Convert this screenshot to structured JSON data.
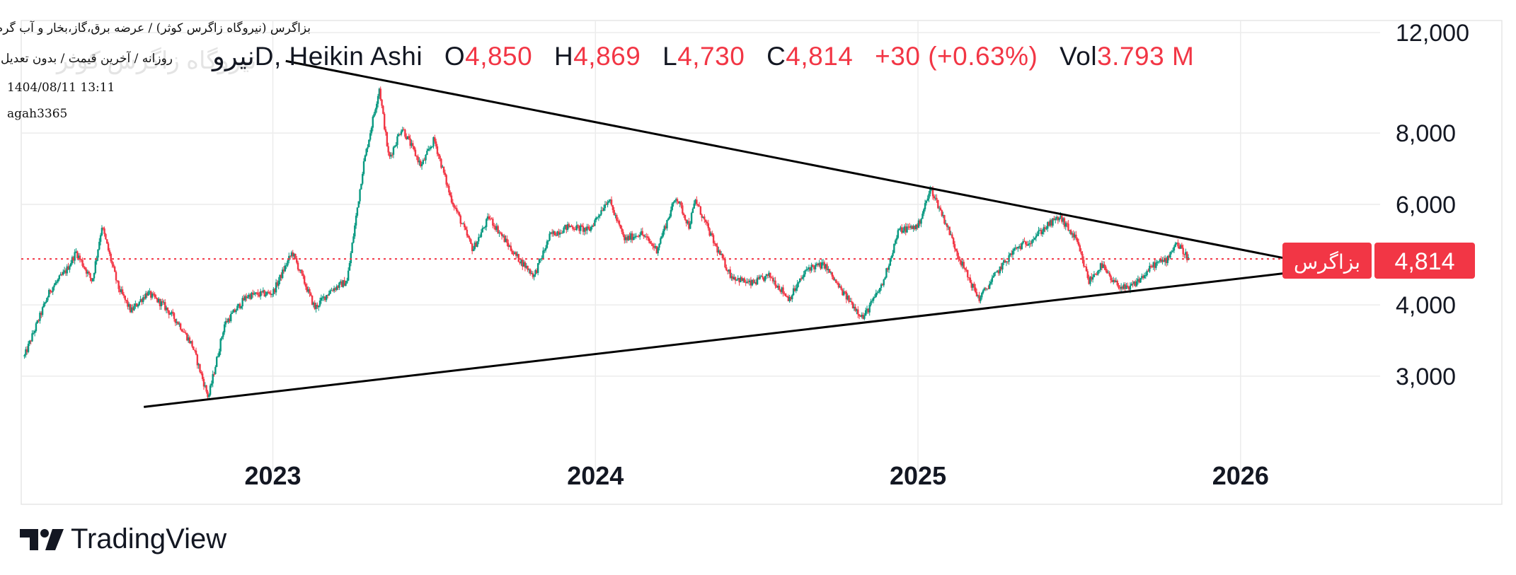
{
  "header": {
    "line1": "بزاگرس (نیروگاه زاگرس کوثر) / عرضه برق،گاز،بخار و آب گرم",
    "line2": "روزانه / آخرین قیمت / بدون تعدیل",
    "date": "1404/08/11 13:11",
    "user": "agah3365",
    "watermark": "نیروگاه زاگرس کوثر"
  },
  "legend": {
    "symbol": "نیروD, Heikin Ashi",
    "open_label": "O",
    "open": "4,850",
    "high_label": "H",
    "high": "4,869",
    "low_label": "L",
    "low": "4,730",
    "close_label": "C",
    "close": "4,814",
    "change": "+30 (+0.63%)",
    "vol_label": "Vol",
    "vol": "3.793 M"
  },
  "price_tag": {
    "name": "بزاگرس",
    "value": "4,814"
  },
  "branding": {
    "name": "TradingView"
  },
  "colors": {
    "up": "#089981",
    "down": "#f23645",
    "line": "#000000",
    "grid": "#ececec"
  },
  "chart_data": {
    "type": "candlestick",
    "chart_style": "Heikin Ashi",
    "y_scale": "log",
    "ylim": [
      2300,
      12600
    ],
    "y_ticks": [
      {
        "value": 12000,
        "label": "12,000"
      },
      {
        "value": 8000,
        "label": "8,000"
      },
      {
        "value": 6000,
        "label": "6,000"
      },
      {
        "value": 4000,
        "label": "4,000"
      },
      {
        "value": 3000,
        "label": "3,000"
      }
    ],
    "x_range": [
      2022.22,
      2026.81
    ],
    "x_ticks": [
      {
        "value": 2023.0,
        "label": "2023"
      },
      {
        "value": 2024.0,
        "label": "2024"
      },
      {
        "value": 2025.0,
        "label": "2025"
      },
      {
        "value": 2026.0,
        "label": "2026"
      }
    ],
    "last_price": 4814,
    "price_path": [
      [
        2022.23,
        3250
      ],
      [
        2022.26,
        3600
      ],
      [
        2022.31,
        4250
      ],
      [
        2022.36,
        4600
      ],
      [
        2022.39,
        4950
      ],
      [
        2022.44,
        4400
      ],
      [
        2022.47,
        5500
      ],
      [
        2022.52,
        4300
      ],
      [
        2022.56,
        3900
      ],
      [
        2022.61,
        4200
      ],
      [
        2022.66,
        4000
      ],
      [
        2022.71,
        3700
      ],
      [
        2022.75,
        3400
      ],
      [
        2022.8,
        2750
      ],
      [
        2022.85,
        3700
      ],
      [
        2022.92,
        4150
      ],
      [
        2023.0,
        4200
      ],
      [
        2023.06,
        4950
      ],
      [
        2023.1,
        4350
      ],
      [
        2023.13,
        3950
      ],
      [
        2023.18,
        4250
      ],
      [
        2023.23,
        4400
      ],
      [
        2023.28,
        7000
      ],
      [
        2023.33,
        9600
      ],
      [
        2023.36,
        7200
      ],
      [
        2023.4,
        8200
      ],
      [
        2023.46,
        7000
      ],
      [
        2023.5,
        7800
      ],
      [
        2023.55,
        6200
      ],
      [
        2023.62,
        5000
      ],
      [
        2023.67,
        5700
      ],
      [
        2023.75,
        4900
      ],
      [
        2023.81,
        4500
      ],
      [
        2023.86,
        5300
      ],
      [
        2023.92,
        5500
      ],
      [
        2023.98,
        5400
      ],
      [
        2024.04,
        6150
      ],
      [
        2024.09,
        5200
      ],
      [
        2024.14,
        5350
      ],
      [
        2024.19,
        5000
      ],
      [
        2024.25,
        6200
      ],
      [
        2024.29,
        5500
      ],
      [
        2024.31,
        6100
      ],
      [
        2024.37,
        5100
      ],
      [
        2024.42,
        4500
      ],
      [
        2024.48,
        4350
      ],
      [
        2024.54,
        4500
      ],
      [
        2024.6,
        4100
      ],
      [
        2024.66,
        4650
      ],
      [
        2024.71,
        4700
      ],
      [
        2024.76,
        4250
      ],
      [
        2024.83,
        3800
      ],
      [
        2024.89,
        4350
      ],
      [
        2024.94,
        5400
      ],
      [
        2025.0,
        5500
      ],
      [
        2025.04,
        6400
      ],
      [
        2025.09,
        5500
      ],
      [
        2025.13,
        4800
      ],
      [
        2025.17,
        4300
      ],
      [
        2025.19,
        4100
      ],
      [
        2025.25,
        4600
      ],
      [
        2025.3,
        5000
      ],
      [
        2025.35,
        5200
      ],
      [
        2025.4,
        5500
      ],
      [
        2025.44,
        5700
      ],
      [
        2025.49,
        5200
      ],
      [
        2025.53,
        4400
      ],
      [
        2025.57,
        4700
      ],
      [
        2025.6,
        4400
      ],
      [
        2025.65,
        4250
      ],
      [
        2025.7,
        4500
      ],
      [
        2025.73,
        4700
      ],
      [
        2025.77,
        4800
      ],
      [
        2025.8,
        5150
      ],
      [
        2025.84,
        4814
      ]
    ],
    "trendlines": [
      {
        "name": "upper",
        "x1": 2023.04,
        "y1": 10700,
        "x2": 2026.16,
        "y2": 4800
      },
      {
        "name": "lower",
        "x1": 2022.6,
        "y1": 2650,
        "x2": 2026.16,
        "y2": 4560
      }
    ]
  }
}
